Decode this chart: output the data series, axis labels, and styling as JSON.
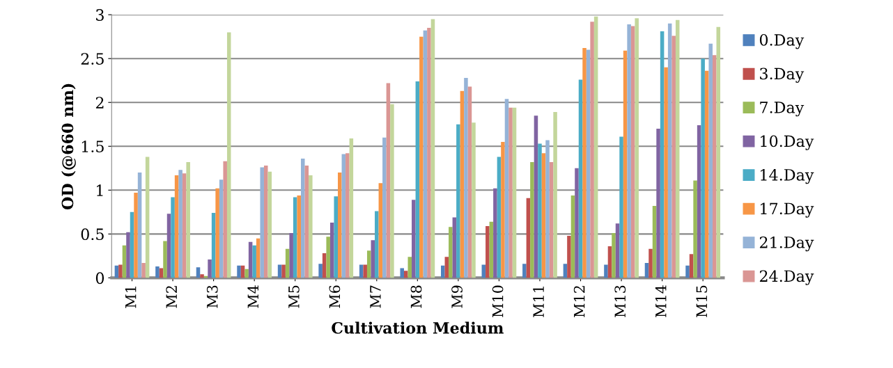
{
  "chart_data": {
    "type": "bar",
    "xlabel": "Cultivation Medium",
    "ylabel": "OD (@660 nm)",
    "categories": [
      "M1",
      "M2",
      "M3",
      "M4",
      "M5",
      "M6",
      "M7",
      "M8",
      "M9",
      "M10",
      "M11",
      "M12",
      "M13",
      "M14",
      "M15"
    ],
    "ylim": [
      0,
      3
    ],
    "yticks": [
      0,
      {
        "value": 0.5,
        "label": "0.5"
      },
      1,
      {
        "value": 1.5,
        "label": "1.5"
      },
      2,
      {
        "value": 2.5,
        "label": "2.5"
      },
      3
    ],
    "grid": "y",
    "legend": "right",
    "series": [
      {
        "name": "0.Day",
        "color": "#4f81bd",
        "values": [
          0.14,
          0.13,
          0.12,
          0.14,
          0.15,
          0.16,
          0.15,
          0.11,
          0.14,
          0.15,
          0.16,
          0.16,
          0.15,
          0.17,
          0.14
        ]
      },
      {
        "name": "3.Day",
        "color": "#c0504d",
        "values": [
          0.15,
          0.11,
          0.04,
          0.14,
          0.15,
          0.28,
          0.15,
          0.08,
          0.24,
          0.59,
          0.91,
          0.48,
          0.36,
          0.33,
          0.27
        ]
      },
      {
        "name": "7.Day",
        "color": "#9bbb59",
        "values": [
          0.37,
          0.42,
          0.02,
          0.1,
          0.33,
          0.47,
          0.31,
          0.24,
          0.58,
          0.64,
          1.32,
          0.94,
          0.51,
          0.82,
          1.11
        ]
      },
      {
        "name": "10.Day",
        "color": "#8064a2",
        "values": [
          0.52,
          0.73,
          0.21,
          0.41,
          0.51,
          0.63,
          0.43,
          0.89,
          0.69,
          1.02,
          1.85,
          1.25,
          0.62,
          1.7,
          1.74
        ]
      },
      {
        "name": "14.Day",
        "color": "#4bacc6",
        "values": [
          0.75,
          0.92,
          0.74,
          0.37,
          0.92,
          0.93,
          0.76,
          2.24,
          1.75,
          1.38,
          1.53,
          2.26,
          1.61,
          2.81,
          2.5
        ]
      },
      {
        "name": "17.Day",
        "color": "#f79646",
        "values": [
          0.97,
          1.17,
          1.02,
          0.45,
          0.94,
          1.2,
          1.08,
          2.75,
          2.13,
          1.55,
          1.42,
          2.62,
          2.59,
          2.4,
          2.36
        ]
      },
      {
        "name": "21.Day",
        "color": "#95b3d7",
        "values": [
          1.2,
          1.23,
          1.12,
          1.26,
          1.36,
          1.41,
          1.6,
          2.82,
          2.28,
          2.04,
          1.57,
          2.6,
          2.89,
          2.9,
          2.67
        ]
      },
      {
        "name": "24.Day",
        "color": "#da9694",
        "values": [
          0.17,
          1.19,
          1.33,
          1.28,
          1.28,
          1.42,
          2.22,
          2.85,
          2.18,
          1.94,
          1.32,
          2.92,
          2.87,
          2.76,
          2.54
        ]
      },
      {
        "color": "#c3d69b",
        "values": [
          1.38,
          1.32,
          2.8,
          1.21,
          1.17,
          1.59,
          1.98,
          2.95,
          1.77,
          1.94,
          1.89,
          2.98,
          2.96,
          2.94,
          2.86
        ]
      }
    ]
  }
}
